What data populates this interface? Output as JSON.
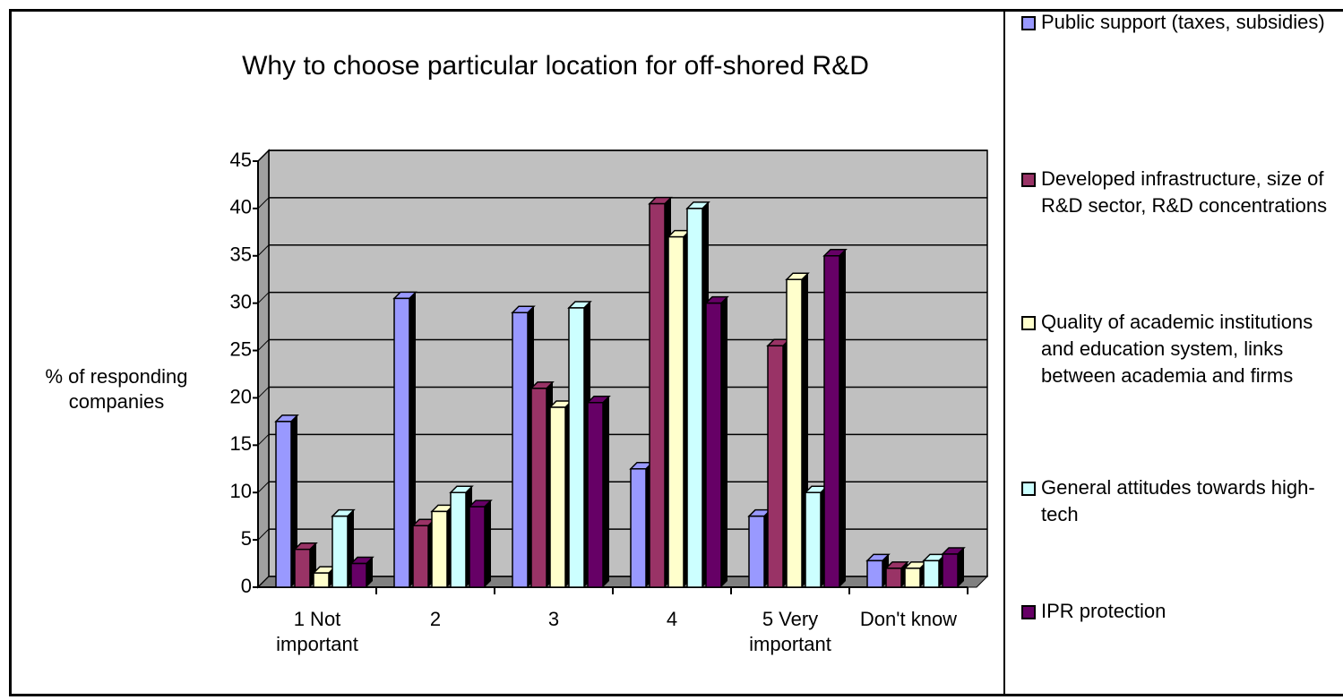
{
  "chart_data": {
    "type": "bar3d",
    "title": "Why to choose particular location for off-shored R&D",
    "ylabel": "% of responding companies",
    "categories": [
      "1 Not important",
      "2",
      "3",
      "4",
      "5 Very important",
      "Don't know"
    ],
    "series": [
      {
        "name": "Public support (taxes, subsidies)",
        "color": "#9999ff",
        "values": [
          17.5,
          30.5,
          29,
          12.5,
          7.5,
          2.8
        ]
      },
      {
        "name": "Developed infrastructure, size of R&D sector, R&D concentrations",
        "color": "#993366",
        "values": [
          4,
          6.5,
          21,
          40.5,
          25.5,
          2
        ]
      },
      {
        "name": "Quality of academic institutions and education system, links between academia and firms",
        "color": "#ffffcc",
        "values": [
          1.5,
          8,
          19,
          37,
          32.5,
          2
        ]
      },
      {
        "name": "General attitudes towards high-tech",
        "color": "#ccffff",
        "values": [
          7.5,
          10,
          29.5,
          40,
          10,
          2.8
        ]
      },
      {
        "name": "IPR protection",
        "color": "#660066",
        "values": [
          2.5,
          8.5,
          19.5,
          30,
          35,
          3.5
        ]
      }
    ],
    "ylim": [
      0,
      45
    ],
    "yticks": [
      0,
      5,
      10,
      15,
      20,
      25,
      30,
      35,
      40,
      45
    ],
    "grid": true
  }
}
